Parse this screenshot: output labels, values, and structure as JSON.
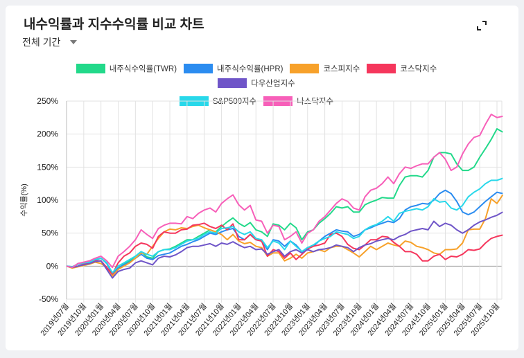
{
  "header": {
    "title": "내수익률과 지수수익률 비교 차트",
    "period": "전체 기간",
    "expand_icon": "expand-icon"
  },
  "chart_data": {
    "type": "line",
    "ylabel": "수익률(%)",
    "ylim": [
      -50,
      250
    ],
    "yticks": [
      "250%",
      "200%",
      "150%",
      "100%",
      "50%",
      "0%",
      "-50%"
    ],
    "ytick_values": [
      250,
      200,
      150,
      100,
      50,
      0,
      -50
    ],
    "x_start": "2019-07",
    "x_end": "2025-11",
    "x_interval": "monthly",
    "xticks": [
      "2019년07월",
      "2019년10월",
      "2020년01월",
      "2020년04월",
      "2020년07월",
      "2020년10월",
      "2021년01월",
      "2021년04월",
      "2021년07월",
      "2021년10월",
      "2022년01월",
      "2022년04월",
      "2022년07월",
      "2022년10월",
      "2023년01월",
      "2023년04월",
      "2023년07월",
      "2023년10월",
      "2024년01월",
      "2024년04월",
      "2024년07월",
      "2024년10월",
      "2025년01월",
      "2025년04월",
      "2025년07월",
      "2025년10월"
    ],
    "grid": true,
    "legend_position": "top",
    "series": [
      {
        "name": "내주식수익률(TWR)",
        "color": "#22d98a",
        "values": [
          0,
          -2,
          4,
          5,
          6,
          10,
          12,
          5,
          -12,
          -3,
          3,
          8,
          15,
          22,
          14,
          12,
          22,
          25,
          26,
          30,
          35,
          40,
          40,
          45,
          50,
          55,
          52,
          60,
          67,
          73,
          65,
          60,
          66,
          55,
          52,
          45,
          64,
          62,
          55,
          65,
          58,
          40,
          52,
          55,
          65,
          72,
          80,
          90,
          88,
          90,
          82,
          82,
          93,
          97,
          100,
          104,
          103,
          103,
          122,
          135,
          137,
          137,
          135,
          145,
          165,
          172,
          172,
          170,
          155,
          145,
          145,
          150,
          165,
          178,
          192,
          208,
          203
        ]
      },
      {
        "name": "내주식수익률(HPR)",
        "color": "#2b8cf0",
        "values": [
          0,
          -1,
          3,
          5,
          6,
          9,
          12,
          4,
          -12,
          -3,
          2,
          6,
          12,
          18,
          12,
          10,
          16,
          18,
          20,
          25,
          30,
          33,
          37,
          40,
          45,
          50,
          48,
          52,
          55,
          57,
          45,
          40,
          48,
          40,
          38,
          25,
          40,
          38,
          30,
          38,
          32,
          22,
          28,
          30,
          38,
          45,
          50,
          55,
          53,
          52,
          45,
          48,
          55,
          58,
          62,
          65,
          68,
          66,
          72,
          85,
          90,
          92,
          95,
          94,
          100,
          110,
          115,
          110,
          98,
          82,
          78,
          82,
          90,
          98,
          105,
          112,
          110
        ]
      },
      {
        "name": "코스피지수",
        "color": "#f7a12a",
        "values": [
          0,
          -3,
          -1,
          1,
          3,
          6,
          4,
          -2,
          -15,
          -5,
          0,
          5,
          12,
          20,
          18,
          30,
          42,
          52,
          56,
          55,
          58,
          57,
          60,
          62,
          58,
          55,
          52,
          48,
          40,
          48,
          38,
          34,
          36,
          30,
          28,
          15,
          20,
          20,
          8,
          12,
          18,
          12,
          20,
          22,
          25,
          22,
          28,
          30,
          30,
          25,
          20,
          14,
          22,
          30,
          25,
          30,
          35,
          32,
          30,
          38,
          36,
          30,
          28,
          25,
          20,
          18,
          25,
          25,
          26,
          35,
          55,
          56,
          56,
          72,
          102,
          95,
          108
        ]
      },
      {
        "name": "코스닥지수",
        "color": "#f5365c",
        "values": [
          0,
          -2,
          0,
          3,
          4,
          8,
          8,
          -2,
          -12,
          5,
          15,
          20,
          30,
          35,
          33,
          27,
          45,
          52,
          50,
          50,
          55,
          56,
          62,
          63,
          65,
          60,
          57,
          62,
          55,
          64,
          40,
          40,
          48,
          40,
          38,
          15,
          25,
          22,
          12,
          20,
          10,
          18,
          26,
          30,
          32,
          35,
          48,
          50,
          45,
          33,
          27,
          25,
          32,
          40,
          40,
          45,
          44,
          36,
          30,
          22,
          22,
          18,
          8,
          8,
          15,
          18,
          10,
          15,
          14,
          18,
          25,
          24,
          26,
          35,
          42,
          45,
          47
        ]
      },
      {
        "name": "다우산업지수",
        "color": "#6f55c8",
        "values": [
          0,
          -2,
          0,
          2,
          4,
          7,
          8,
          -5,
          -18,
          -8,
          -5,
          -3,
          5,
          8,
          5,
          2,
          12,
          15,
          14,
          17,
          22,
          28,
          30,
          30,
          32,
          34,
          30,
          35,
          33,
          37,
          32,
          28,
          30,
          25,
          26,
          18,
          22,
          25,
          15,
          22,
          25,
          20,
          25,
          22,
          25,
          26,
          28,
          32,
          30,
          28,
          22,
          28,
          32,
          34,
          38,
          40,
          42,
          40,
          45,
          48,
          53,
          55,
          57,
          55,
          68,
          60,
          65,
          62,
          55,
          50,
          55,
          62,
          67,
          70,
          74,
          77,
          82
        ]
      },
      {
        "name": "S&P500지수",
        "color": "#28d8ea",
        "values": [
          0,
          -1,
          3,
          5,
          6,
          10,
          12,
          5,
          -10,
          0,
          5,
          10,
          15,
          22,
          18,
          15,
          22,
          25,
          25,
          28,
          33,
          38,
          40,
          42,
          48,
          52,
          50,
          57,
          58,
          60,
          52,
          48,
          52,
          42,
          40,
          28,
          38,
          35,
          25,
          38,
          30,
          22,
          28,
          32,
          38,
          42,
          45,
          52,
          50,
          48,
          42,
          45,
          55,
          60,
          63,
          68,
          75,
          68,
          80,
          83,
          85,
          87,
          85,
          90,
          102,
          97,
          98,
          88,
          85,
          92,
          105,
          112,
          117,
          125,
          130,
          130,
          133
        ]
      },
      {
        "name": "나스닥지수",
        "color": "#f75fb9",
        "values": [
          0,
          -2,
          4,
          6,
          8,
          12,
          15,
          8,
          -2,
          15,
          22,
          30,
          40,
          55,
          48,
          42,
          57,
          62,
          65,
          65,
          64,
          75,
          72,
          80,
          85,
          88,
          82,
          95,
          102,
          108,
          93,
          85,
          92,
          70,
          68,
          50,
          62,
          60,
          40,
          45,
          52,
          35,
          50,
          55,
          68,
          75,
          85,
          95,
          102,
          98,
          88,
          85,
          105,
          115,
          118,
          125,
          135,
          125,
          140,
          150,
          148,
          152,
          155,
          155,
          165,
          172,
          162,
          145,
          150,
          170,
          185,
          195,
          198,
          215,
          230,
          225,
          227
        ]
      }
    ]
  }
}
